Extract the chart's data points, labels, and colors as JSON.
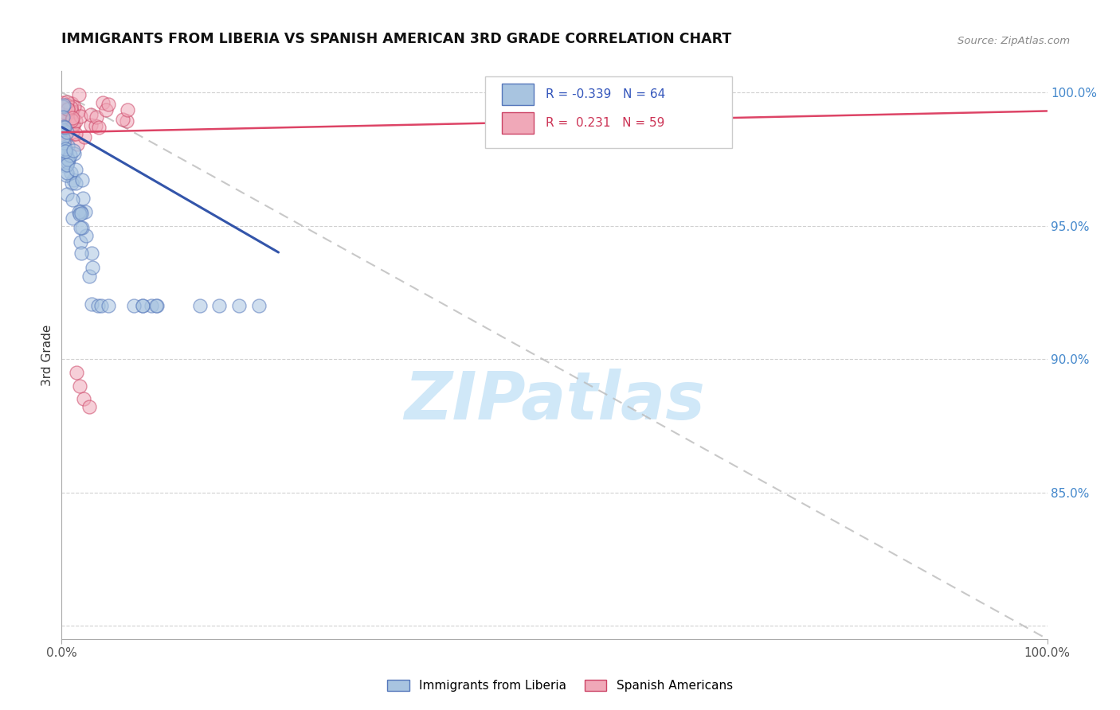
{
  "title": "IMMIGRANTS FROM LIBERIA VS SPANISH AMERICAN 3RD GRADE CORRELATION CHART",
  "source_text": "Source: ZipAtlas.com",
  "ylabel": "3rd Grade",
  "legend2_labels": [
    "Immigrants from Liberia",
    "Spanish Americans"
  ],
  "blue_color": "#a8c4e0",
  "blue_edge_color": "#5577bb",
  "pink_color": "#f0a8b8",
  "pink_edge_color": "#cc4466",
  "blue_line_color": "#3355aa",
  "pink_line_color": "#dd4466",
  "diag_line_color": "#bbbbbb",
  "grid_color": "#cccccc",
  "watermark_color": "#d0e8f8",
  "xmin": 0.0,
  "xmax": 1.0,
  "ymin": 0.795,
  "ymax": 1.008,
  "yticks": [
    0.8,
    0.85,
    0.9,
    0.95,
    1.0
  ],
  "ytick_labels": [
    "",
    "85.0%",
    "90.0%",
    "95.0%",
    "100.0%"
  ]
}
